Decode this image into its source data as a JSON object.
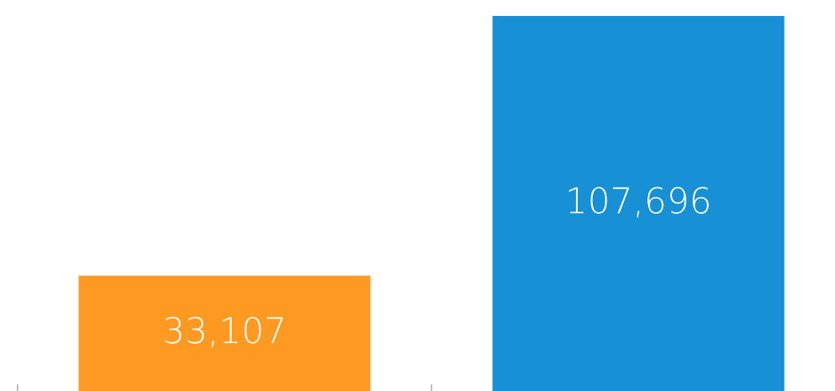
{
  "chart_data": {
    "type": "bar",
    "categories": [
      null,
      null
    ],
    "values": [
      33107,
      107696
    ],
    "colors": [
      "#fe9922",
      "#1790d6"
    ],
    "value_labels": [
      "33,107",
      "107,696"
    ],
    "grid": false,
    "legend": false
  }
}
